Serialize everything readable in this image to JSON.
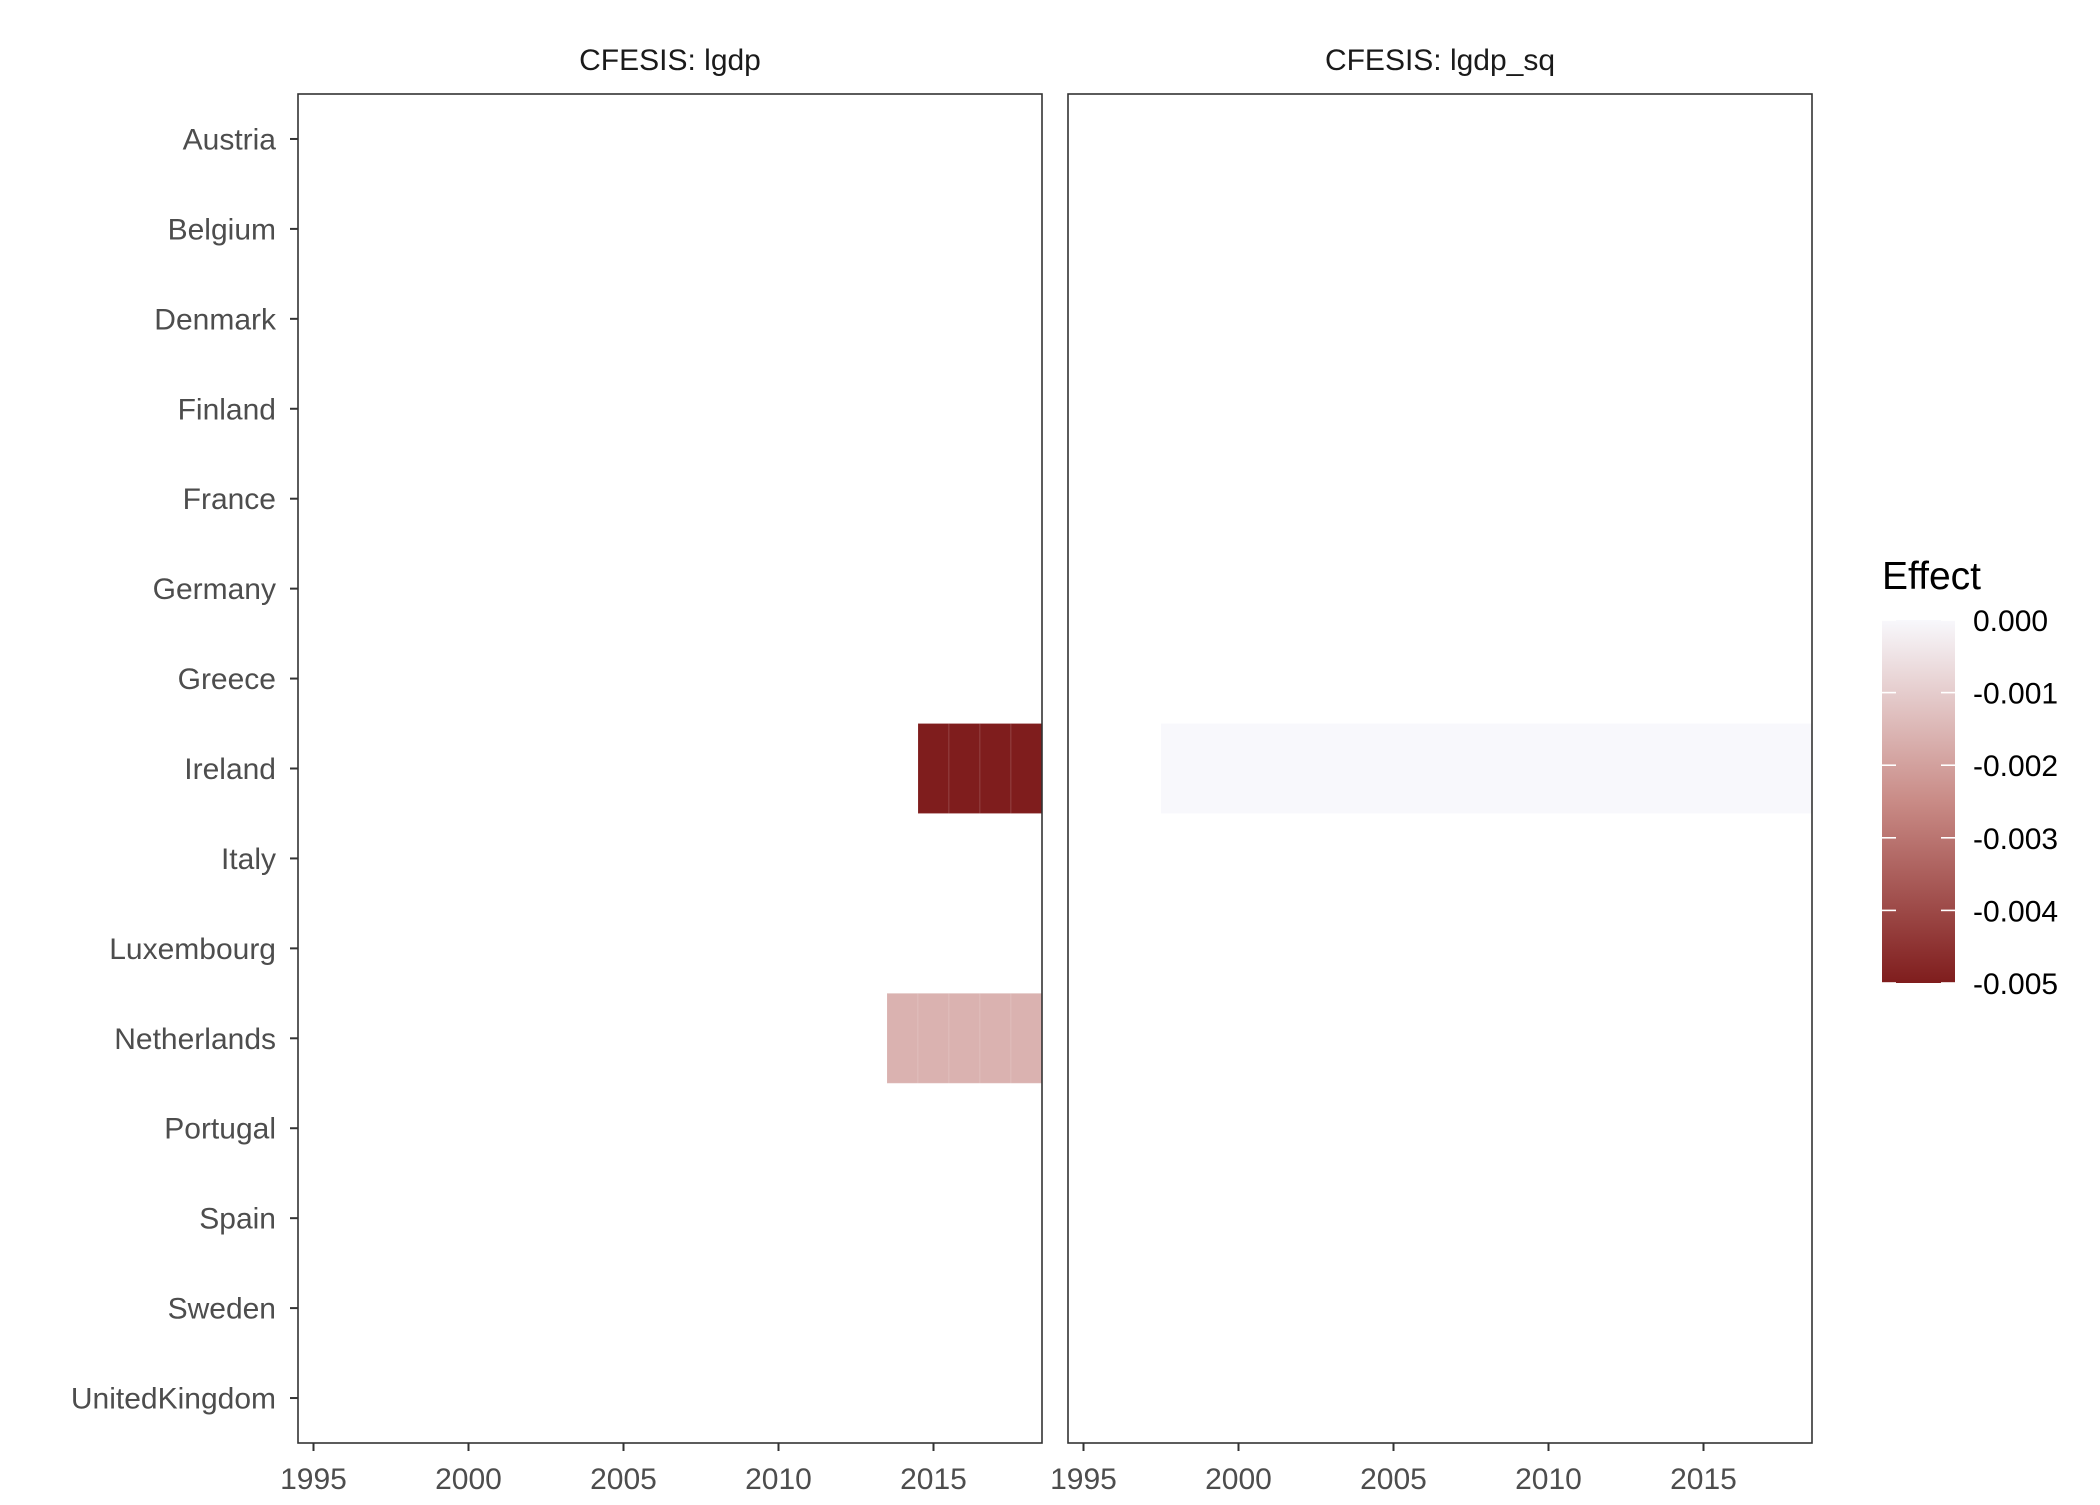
{
  "chart_data": {
    "type": "heatmap",
    "legend": {
      "title": "Effect",
      "ticks": [
        "0.000",
        "-0.001",
        "-0.002",
        "-0.003",
        "-0.004",
        "-0.005"
      ],
      "tick_values": [
        0.0,
        -0.001,
        -0.002,
        -0.003,
        -0.004,
        -0.005
      ],
      "range": [
        -0.005,
        0.0
      ],
      "low_color": "#7f1d1d",
      "high_color": "#f8f8fc",
      "placement": "right"
    },
    "y_categories": [
      "Austria",
      "Belgium",
      "Denmark",
      "Finland",
      "France",
      "Germany",
      "Greece",
      "Ireland",
      "Italy",
      "Luxembourg",
      "Netherlands",
      "Portugal",
      "Spain",
      "Sweden",
      "UnitedKingdom"
    ],
    "x_ticks": [
      "1995",
      "2000",
      "2005",
      "2010",
      "2015"
    ],
    "xlim": [
      1994.5,
      2018.5
    ],
    "panels": [
      {
        "title": "CFESIS: lgdp",
        "cells": [
          {
            "country": "Ireland",
            "from": 2015,
            "to": 2018,
            "value": -0.005
          },
          {
            "country": "Netherlands",
            "from": 2014,
            "to": 2018,
            "value": -0.0016
          }
        ]
      },
      {
        "title": "CFESIS: lgdp_sq",
        "cells": [
          {
            "country": "Ireland",
            "from": 1998,
            "to": 2018,
            "value": -1e-05
          }
        ]
      }
    ]
  }
}
